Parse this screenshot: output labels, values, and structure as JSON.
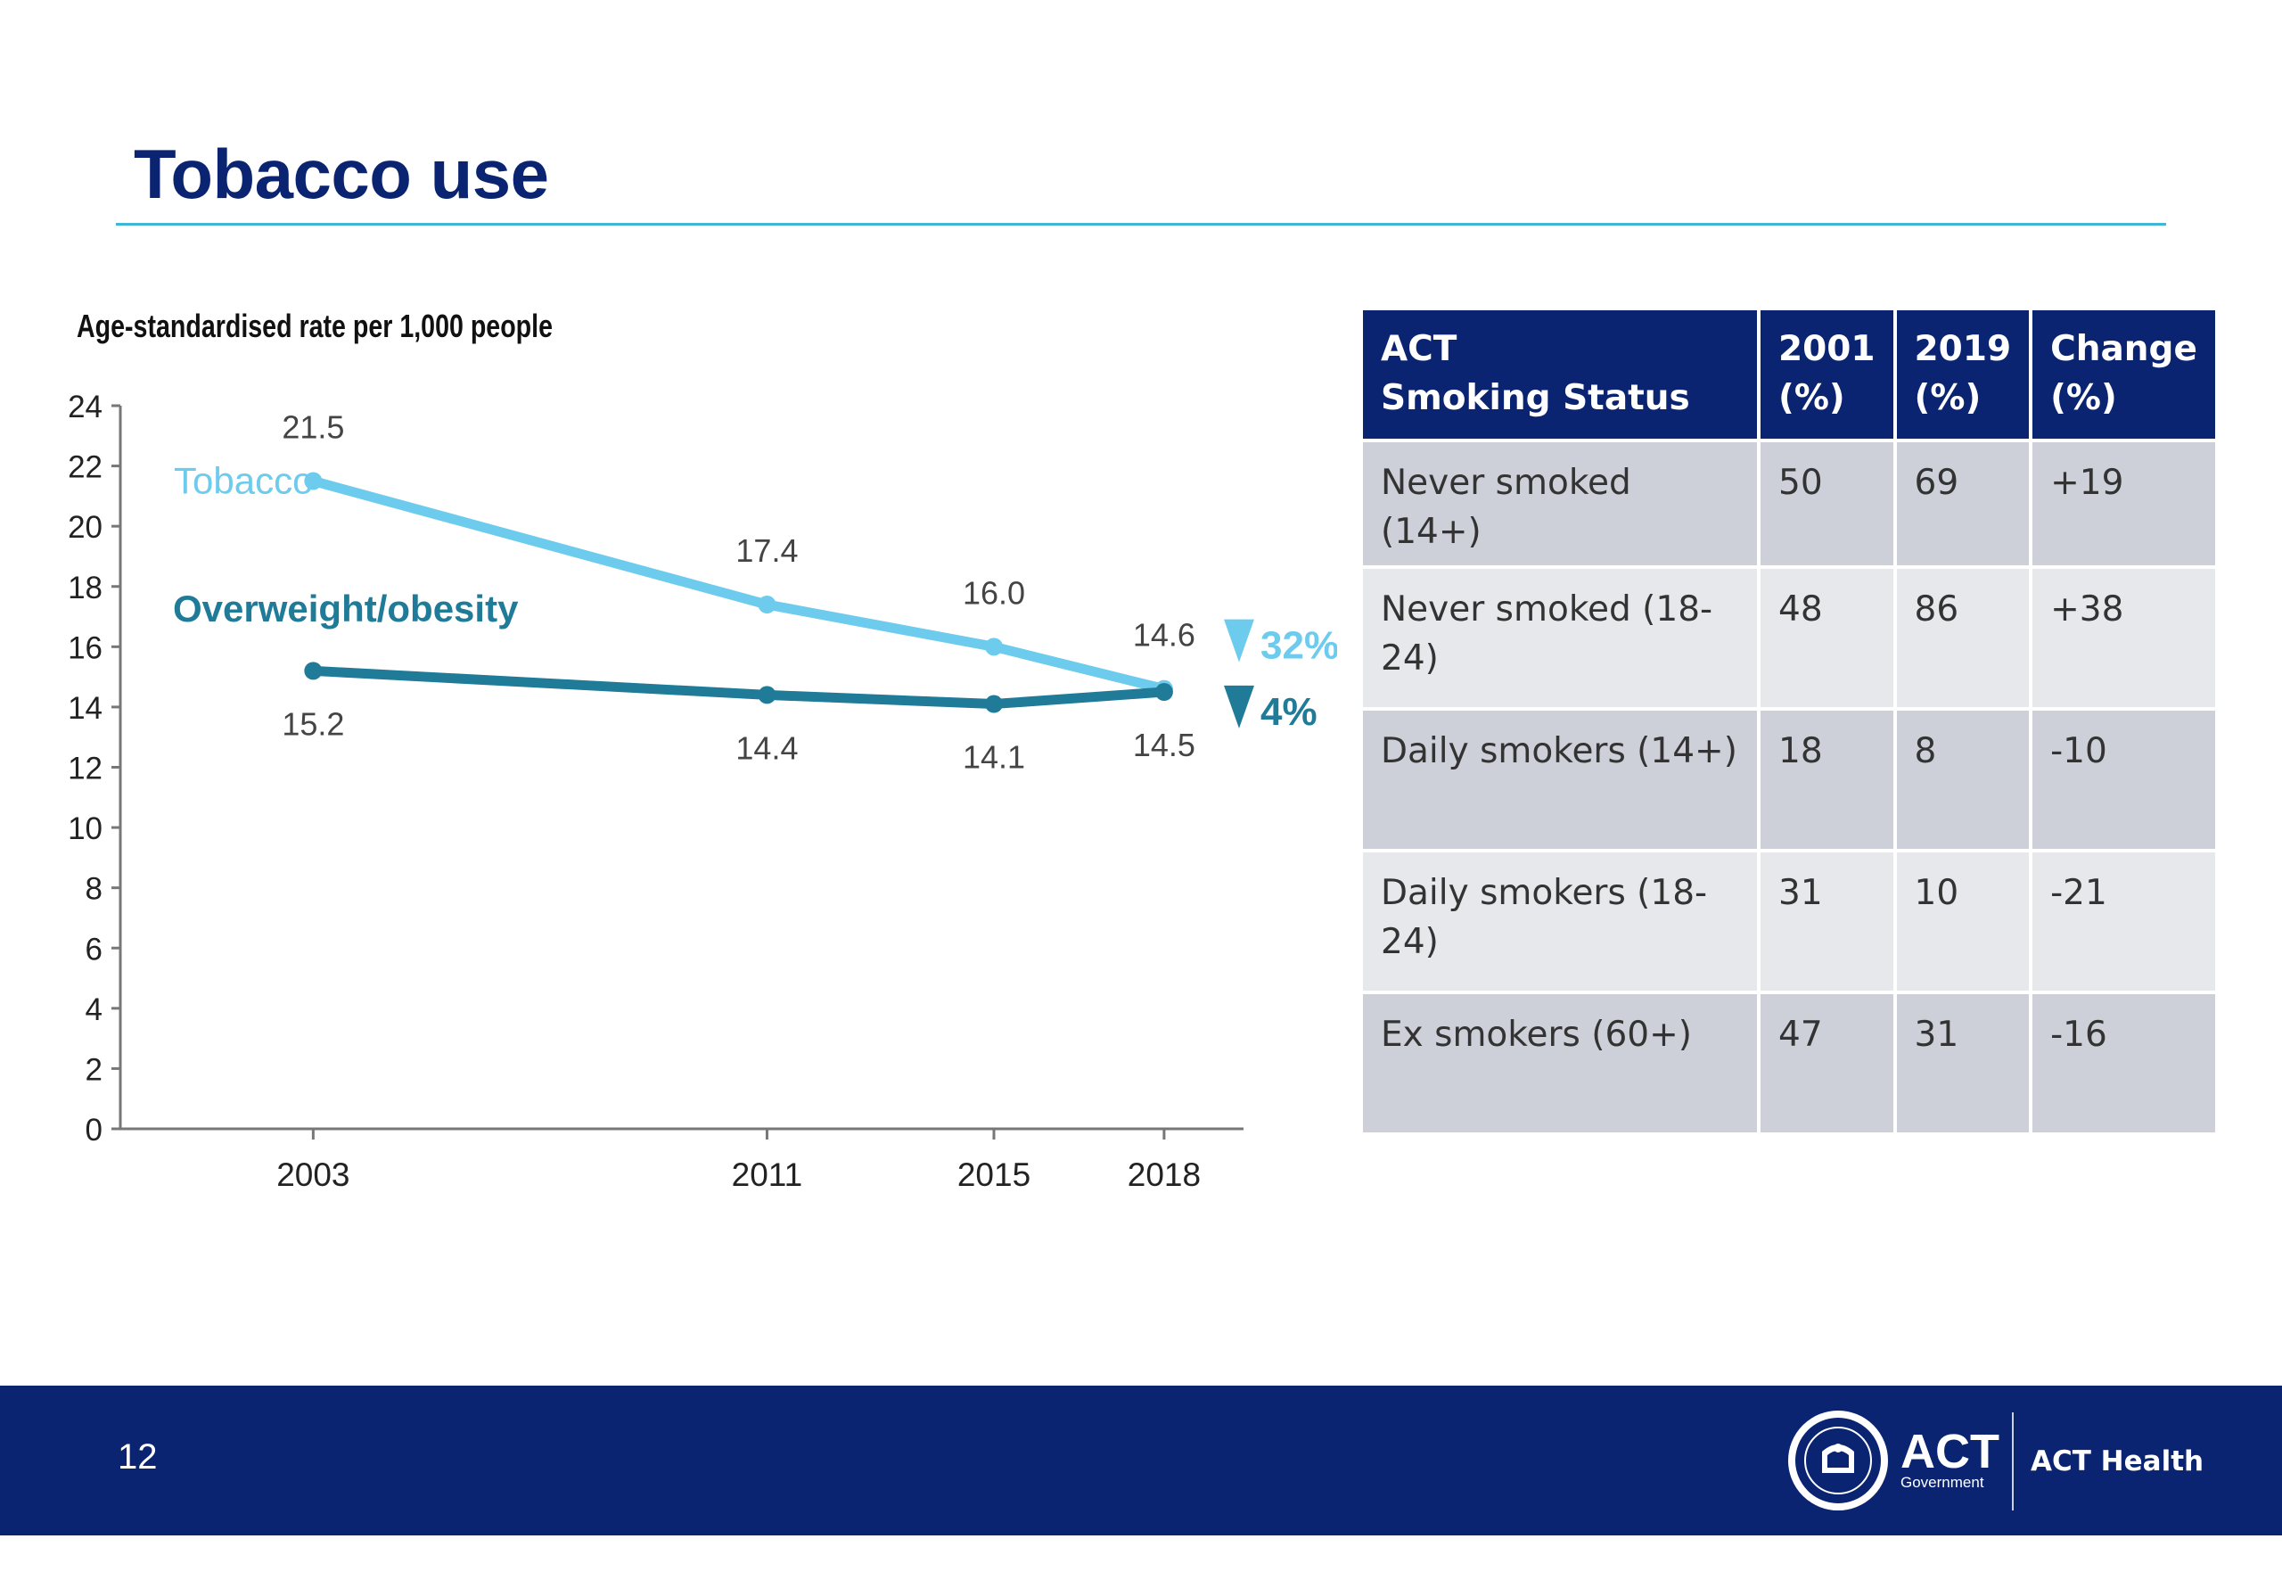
{
  "page": {
    "title": "Tobacco use",
    "page_number": "12"
  },
  "chart_data": {
    "type": "line",
    "ylabel": "Age-standardised rate per 1,000 people",
    "ylim": [
      0,
      24
    ],
    "yticks": [
      0,
      2,
      4,
      6,
      8,
      10,
      12,
      14,
      16,
      18,
      20,
      22,
      24
    ],
    "x": [
      2003,
      2011,
      2015,
      2018
    ],
    "xlim": [
      1999.6,
      2019.4
    ],
    "series": [
      {
        "name": "Tobacco",
        "values": [
          21.5,
          17.4,
          16.0,
          14.6
        ],
        "color": "#6dcbed",
        "labels": [
          "21.5",
          "17.4",
          "16.0",
          "14.6"
        ]
      },
      {
        "name": "Overweight/obesity",
        "values": [
          15.2,
          14.4,
          14.1,
          14.5
        ],
        "color": "#1f7b98",
        "labels": [
          "15.2",
          "14.4",
          "14.1",
          "14.5"
        ]
      }
    ],
    "annotations": [
      {
        "series": "Tobacco",
        "text": "32%",
        "direction": "down"
      },
      {
        "series": "Overweight/obesity",
        "text": "4%",
        "direction": "down"
      }
    ]
  },
  "table": {
    "headers": [
      "ACT\nSmoking Status",
      "2001\n(%)",
      "2019\n(%)",
      "Change\n(%)"
    ],
    "rows": [
      [
        "Never smoked (14+)",
        "50",
        "69",
        "+19"
      ],
      [
        "Never smoked (18-24)",
        "48",
        "86",
        "+38"
      ],
      [
        "Daily smokers (14+)",
        "18",
        "8",
        "-10"
      ],
      [
        "Daily smokers (18-24)",
        "31",
        "10",
        "-21"
      ],
      [
        "Ex smokers (60+)",
        "47",
        "31",
        "-16"
      ]
    ]
  },
  "footer": {
    "logo_text": "ACT",
    "logo_subtext": "Government",
    "org": "ACT Health"
  },
  "colors": {
    "navy": "#0a2472",
    "rule": "#3fb6d8",
    "row_odd": "#cdcfd9",
    "row_even": "#e7e8ec"
  }
}
